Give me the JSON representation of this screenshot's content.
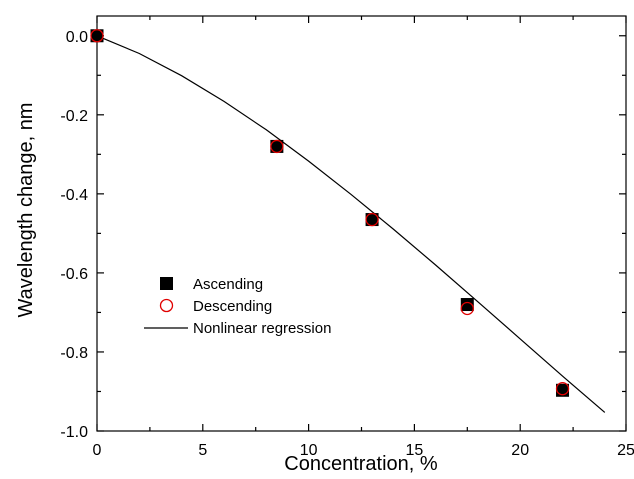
{
  "chart_data": {
    "type": "scatter",
    "xlabel": "Concentration, %",
    "ylabel": "Wavelength change, nm",
    "xlim": [
      0,
      25
    ],
    "ylim": [
      -1.0,
      0.05
    ],
    "xticks": [
      0,
      5,
      10,
      15,
      20,
      25
    ],
    "yticks": [
      0.0,
      -0.2,
      -0.4,
      -0.6,
      -0.8,
      -1.0
    ],
    "xtick_labels": [
      "0",
      "5",
      "10",
      "15",
      "20",
      "25"
    ],
    "ytick_labels": [
      "0.0",
      "-0.2",
      "-0.4",
      "-0.6",
      "-0.8",
      "-1.0"
    ],
    "grid": false,
    "legend_position": "bottom-left",
    "series": [
      {
        "name": "Ascending",
        "marker": "filled-square",
        "color": "#000000",
        "x": [
          0,
          8.5,
          13,
          17.5,
          22
        ],
        "y": [
          0.0,
          -0.28,
          -0.465,
          -0.68,
          -0.897
        ]
      },
      {
        "name": "Descending",
        "marker": "open-circle",
        "color": "#e00000",
        "x": [
          0,
          8.5,
          13,
          17.5,
          22
        ],
        "y": [
          0.0,
          -0.28,
          -0.465,
          -0.69,
          -0.893
        ]
      },
      {
        "name": "Nonlinear regression",
        "marker": "line",
        "color": "#000000",
        "x": [
          0,
          2,
          4,
          6,
          8,
          10,
          12,
          14,
          16,
          18,
          20,
          22,
          24
        ],
        "y": [
          0.0,
          -0.045,
          -0.101,
          -0.166,
          -0.238,
          -0.317,
          -0.401,
          -0.489,
          -0.58,
          -0.673,
          -0.767,
          -0.861,
          -0.953
        ]
      }
    ]
  }
}
